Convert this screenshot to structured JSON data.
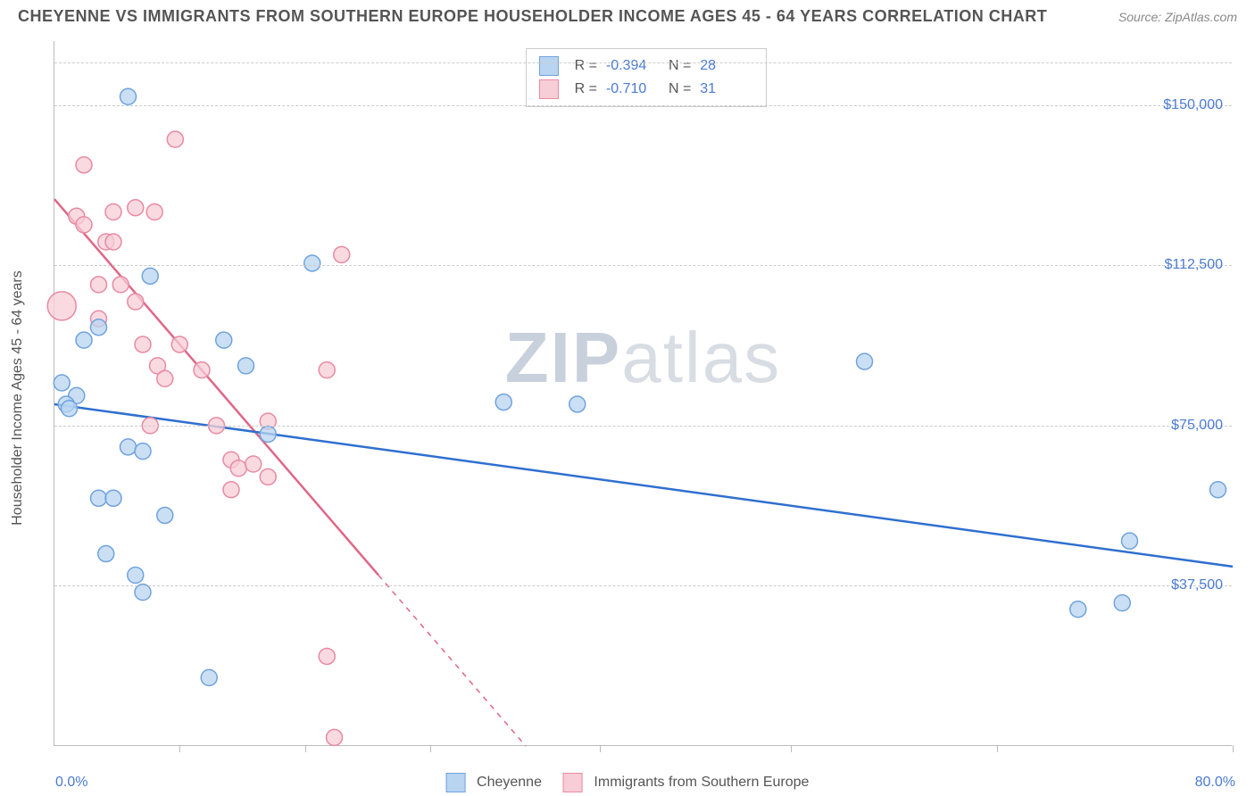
{
  "header": {
    "title": "CHEYENNE VS IMMIGRANTS FROM SOUTHERN EUROPE HOUSEHOLDER INCOME AGES 45 - 64 YEARS CORRELATION CHART",
    "source": "Source: ZipAtlas.com"
  },
  "chart": {
    "type": "scatter",
    "y_axis_title": "Householder Income Ages 45 - 64 years",
    "x_min_label": "0.0%",
    "x_max_label": "80.0%",
    "x_domain": [
      0,
      80
    ],
    "y_domain": [
      0,
      165000
    ],
    "y_ticks": [
      {
        "value": 37500,
        "label": "$37,500"
      },
      {
        "value": 75000,
        "label": "$75,000"
      },
      {
        "value": 112500,
        "label": "$112,500"
      },
      {
        "value": 150000,
        "label": "$150,000"
      }
    ],
    "y_gridlines": [
      37500,
      75000,
      112500,
      150000,
      160000
    ],
    "x_ticks": [
      8.5,
      17,
      25.5,
      37,
      50,
      64,
      80
    ],
    "background_color": "#ffffff",
    "grid_color": "#cccccc",
    "marker_radius": 9,
    "marker_stroke_width": 1.5,
    "trend_line_width": 2.5,
    "watermark": "ZIPatlas",
    "series": [
      {
        "key": "cheyenne",
        "label": "Cheyenne",
        "fill": "#b9d4f0",
        "stroke": "#6fa3dd",
        "line_color": "#2f6fd0",
        "R": "-0.394",
        "N": "28",
        "trend": {
          "x1": 0,
          "y1": 80000,
          "x2": 80,
          "y2": 42000
        },
        "points": [
          [
            2.0,
            95000
          ],
          [
            3.0,
            98000
          ],
          [
            0.5,
            85000
          ],
          [
            1.5,
            82000
          ],
          [
            0.8,
            80000
          ],
          [
            1.0,
            79000
          ],
          [
            5.0,
            152000
          ],
          [
            6.5,
            110000
          ],
          [
            5.0,
            70000
          ],
          [
            7.5,
            54000
          ],
          [
            3.0,
            58000
          ],
          [
            4.0,
            58000
          ],
          [
            5.5,
            40000
          ],
          [
            6.0,
            36000
          ],
          [
            11.5,
            95000
          ],
          [
            13.0,
            89000
          ],
          [
            14.5,
            73000
          ],
          [
            10.5,
            16000
          ],
          [
            17.5,
            113000
          ],
          [
            30.5,
            80500
          ],
          [
            35.5,
            80000
          ],
          [
            55.0,
            90000
          ],
          [
            69.5,
            32000
          ],
          [
            72.5,
            33500
          ],
          [
            73.0,
            48000
          ],
          [
            79.0,
            60000
          ],
          [
            6.0,
            69000
          ],
          [
            3.5,
            45000
          ]
        ]
      },
      {
        "key": "immigrants",
        "label": "Immigrants from Southern Europe",
        "fill": "#f7cdd7",
        "stroke": "#e98aa2",
        "line_color": "#e06688",
        "R": "-0.710",
        "N": "31",
        "trend": {
          "x1": 0,
          "y1": 128000,
          "x2": 22,
          "y2": 40000
        },
        "trend_dash": {
          "x1": 22,
          "y1": 40000,
          "x2": 32,
          "y2": 0
        },
        "points": [
          [
            0.5,
            103000,
            16
          ],
          [
            2.0,
            136000
          ],
          [
            1.5,
            124000
          ],
          [
            2.0,
            122000
          ],
          [
            4.0,
            125000
          ],
          [
            3.5,
            118000
          ],
          [
            4.0,
            118000
          ],
          [
            3.0,
            108000
          ],
          [
            4.5,
            108000
          ],
          [
            3.0,
            100000
          ],
          [
            5.5,
            126000
          ],
          [
            6.8,
            125000
          ],
          [
            8.2,
            142000
          ],
          [
            5.5,
            104000
          ],
          [
            6.0,
            94000
          ],
          [
            7.0,
            89000
          ],
          [
            8.5,
            94000
          ],
          [
            7.5,
            86000
          ],
          [
            6.5,
            75000
          ],
          [
            10.0,
            88000
          ],
          [
            11.0,
            75000
          ],
          [
            12.0,
            67000
          ],
          [
            12.5,
            65000
          ],
          [
            13.5,
            66000
          ],
          [
            14.5,
            63000
          ],
          [
            12.0,
            60000
          ],
          [
            14.5,
            76000
          ],
          [
            18.5,
            88000
          ],
          [
            19.5,
            115000
          ],
          [
            18.5,
            21000
          ],
          [
            19.0,
            2000
          ]
        ]
      }
    ]
  },
  "bottom_legend": {
    "items": [
      {
        "label": "Cheyenne",
        "fill": "#b9d4f0",
        "stroke": "#6fa3dd"
      },
      {
        "label": "Immigrants from Southern Europe",
        "fill": "#f7cdd7",
        "stroke": "#e98aa2"
      }
    ]
  }
}
